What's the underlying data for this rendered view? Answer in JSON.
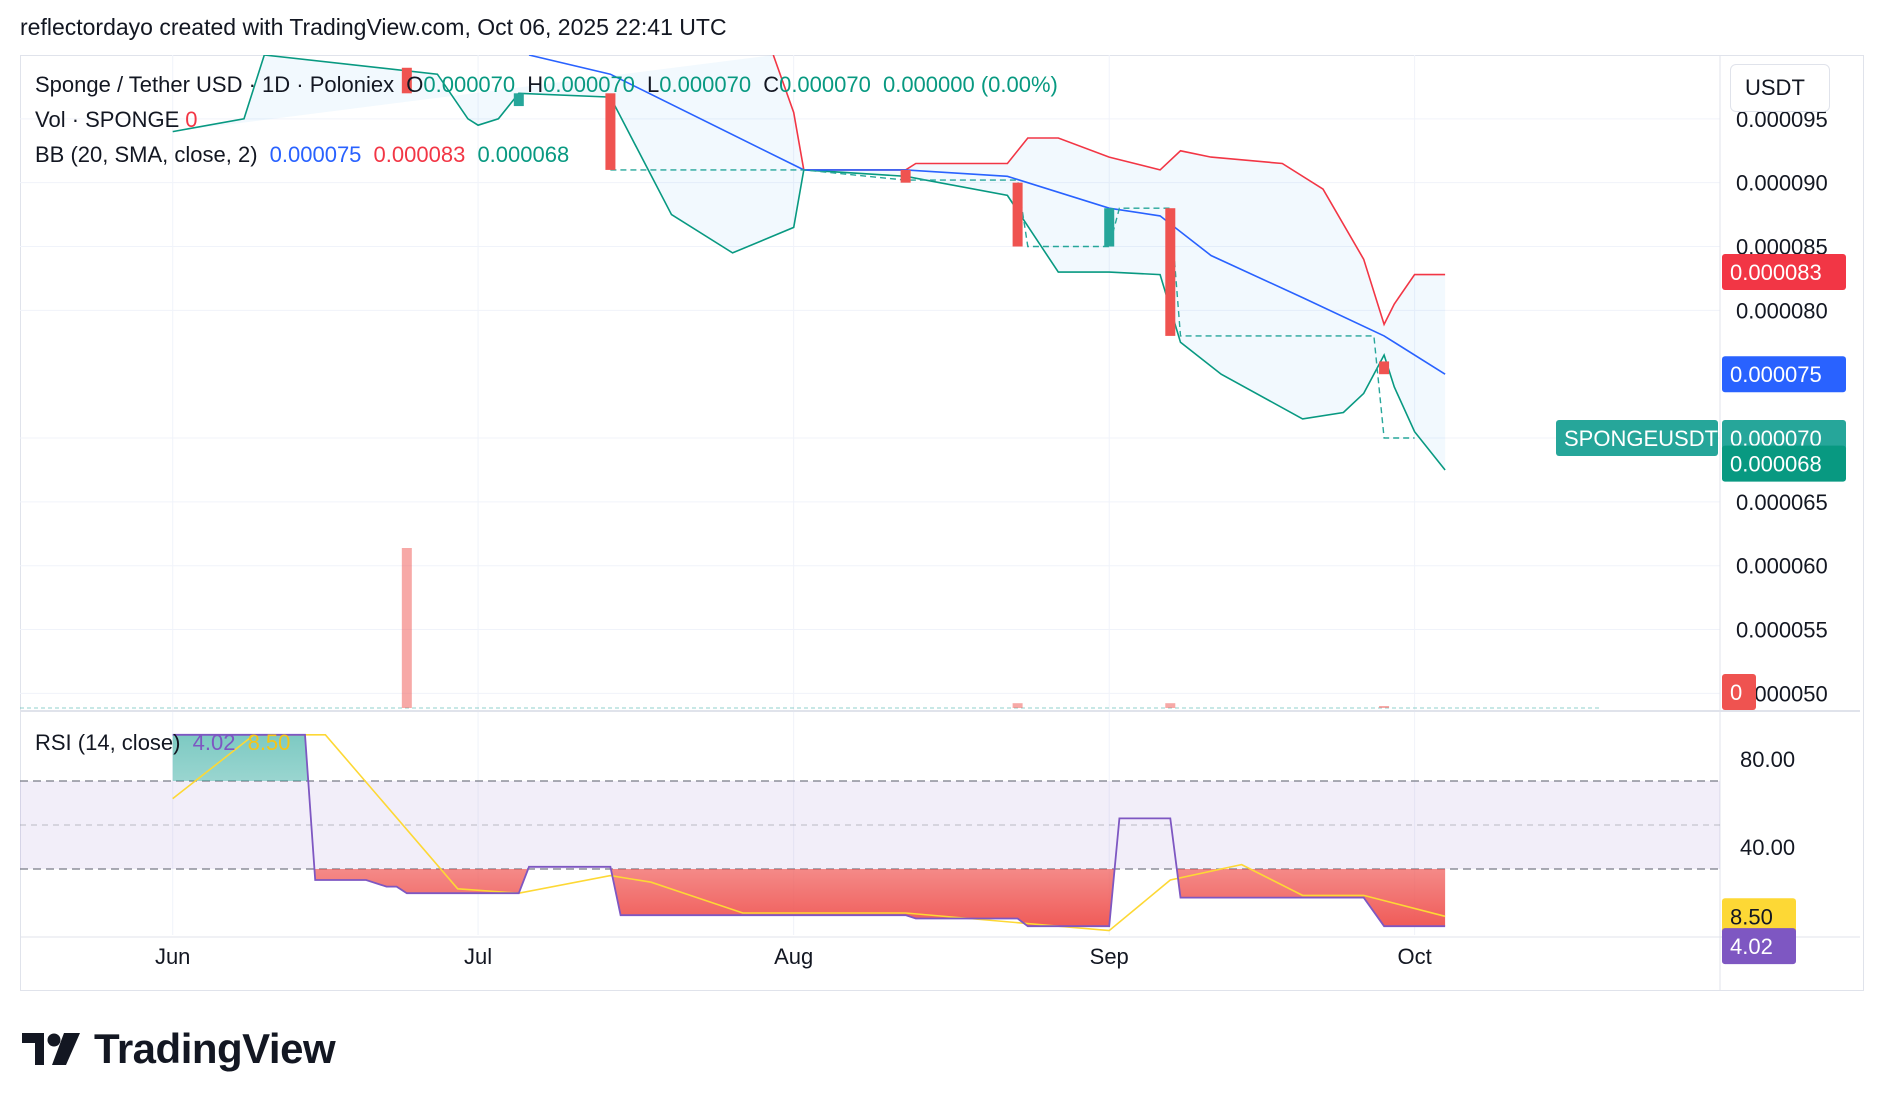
{
  "header": {
    "attribution": "reflectordayo created with TradingView.com, Oct 06, 2025 22:41 UTC"
  },
  "legend": {
    "symbol": "Sponge / Tether USD · 1D · Poloniex",
    "o_label": "O",
    "o_value": "0.000070",
    "h_label": "H",
    "h_value": "0.000070",
    "l_label": "L",
    "l_value": "0.000070",
    "c_label": "C",
    "c_value": "0.000070",
    "change": "0.000000 (0.00%)",
    "vol_label": "Vol · SPONGE",
    "vol_value": "0",
    "bb_label": "BB (20, SMA, close, 2)",
    "bb_basis": "0.000075",
    "bb_upper": "0.000083",
    "bb_lower": "0.000068",
    "rsi_label": "RSI (14, close)",
    "rsi_value": "4.02",
    "rsi_ma": "8.50"
  },
  "currency_button": "USDT",
  "price_axis": {
    "ticks": [
      "0.000095",
      "0.000090",
      "0.000085",
      "0.000080",
      "0.000065",
      "0.000060",
      "0.000055",
      "0.000050"
    ],
    "tick_values": [
      9.5e-05,
      9e-05,
      8.5e-05,
      8e-05,
      6.5e-05,
      6e-05,
      5.5e-05,
      5e-05
    ],
    "labels": [
      {
        "text": "0.000083",
        "value": 8.3e-05,
        "color": "#f23645"
      },
      {
        "text": "0.000075",
        "value": 7.5e-05,
        "color": "#2962ff"
      },
      {
        "text": "0.000070",
        "value": 7e-05,
        "color": "#26a69a"
      },
      {
        "text": "0.000068",
        "value": 6.8e-05,
        "color": "#089981"
      }
    ],
    "symbol_tag": "SPONGEUSDT",
    "volume_tag": "0"
  },
  "rsi_axis": {
    "ticks": [
      "80.00",
      "40.00"
    ],
    "tick_values": [
      80,
      40
    ],
    "labels": [
      {
        "text": "8.50",
        "value": 8.5,
        "color": "#fdd835"
      },
      {
        "text": "4.02",
        "value": 4.02,
        "color": "#7e57c2"
      }
    ]
  },
  "time_axis": {
    "ticks": [
      "Jun",
      "Jul",
      "Aug",
      "Sep",
      "Oct"
    ],
    "tick_dates": [
      "2025-06-01",
      "2025-07-01",
      "2025-08-01",
      "2025-09-01",
      "2025-10-01"
    ]
  },
  "brand": "TradingView",
  "colors": {
    "up": "#26a69a",
    "down": "#ef5350",
    "basis": "#2962ff",
    "upper": "#f23645",
    "lower": "#089981",
    "rsi": "#7e57c2",
    "rsi_ma": "#fdd835"
  },
  "chart_data": {
    "type": "line",
    "title": "Sponge / Tether USD · 1D · Poloniex",
    "candles": [
      {
        "date": "2025-06-24",
        "open": 9.9e-05,
        "close": 9.7e-05
      },
      {
        "date": "2025-07-05",
        "open": 9.6e-05,
        "close": 9.7e-05
      },
      {
        "date": "2025-07-14",
        "open": 9.7e-05,
        "close": 9.1e-05
      },
      {
        "date": "2025-08-12",
        "open": 9.1e-05,
        "close": 9e-05
      },
      {
        "date": "2025-08-23",
        "open": 9e-05,
        "close": 8.5e-05
      },
      {
        "date": "2025-09-01",
        "open": 8.5e-05,
        "close": 8.8e-05
      },
      {
        "date": "2025-09-07",
        "open": 8.8e-05,
        "close": 7.8e-05
      },
      {
        "date": "2025-09-28",
        "open": 7.6e-05,
        "close": 7.5e-05
      }
    ],
    "bb_basis": {
      "dates": [
        "2025-07-06",
        "2025-07-14",
        "2025-08-02",
        "2025-08-12",
        "2025-08-22",
        "2025-09-01",
        "2025-09-06",
        "2025-09-11",
        "2025-09-20",
        "2025-09-28",
        "2025-10-04"
      ],
      "values": [
        0.0001,
        9.85e-05,
        9.1e-05,
        9.1e-05,
        9.05e-05,
        8.8e-05,
        8.74e-05,
        8.43e-05,
        8.1e-05,
        7.8e-05,
        7.5e-05
      ]
    },
    "bb_upper": {
      "dates": [
        "2025-07-30",
        "2025-08-01",
        "2025-08-02",
        "2025-08-12",
        "2025-08-13",
        "2025-08-22",
        "2025-08-24",
        "2025-08-27",
        "2025-09-01",
        "2025-09-06",
        "2025-09-08",
        "2025-09-11",
        "2025-09-18",
        "2025-09-22",
        "2025-09-26",
        "2025-09-28",
        "2025-09-29",
        "2025-10-01",
        "2025-10-04"
      ],
      "values": [
        0.0001,
        9.55e-05,
        9.1e-05,
        9.1e-05,
        9.15e-05,
        9.15e-05,
        9.35e-05,
        9.35e-05,
        9.2e-05,
        9.1e-05,
        9.25e-05,
        9.2e-05,
        9.15e-05,
        8.95e-05,
        8.4e-05,
        7.89e-05,
        8.05e-05,
        8.28e-05,
        8.28e-05
      ]
    },
    "bb_lower": {
      "dates": [
        "2025-06-01",
        "2025-06-08",
        "2025-06-10",
        "2025-06-27",
        "2025-06-30",
        "2025-07-01",
        "2025-07-03",
        "2025-07-05",
        "2025-07-14",
        "2025-07-20",
        "2025-07-26",
        "2025-08-01",
        "2025-08-02",
        "2025-08-12",
        "2025-08-22",
        "2025-08-27",
        "2025-09-01",
        "2025-09-06",
        "2025-09-08",
        "2025-09-12",
        "2025-09-20",
        "2025-09-24",
        "2025-09-26",
        "2025-09-28",
        "2025-09-29",
        "2025-10-01",
        "2025-10-04"
      ],
      "values": [
        9.4e-05,
        9.5e-05,
        0.0001,
        9.85e-05,
        9.5e-05,
        9.45e-05,
        9.5e-05,
        9.7e-05,
        9.67e-05,
        8.75e-05,
        8.45e-05,
        8.65e-05,
        9.1e-05,
        9.05e-05,
        8.9e-05,
        8.3e-05,
        8.3e-05,
        8.28e-05,
        7.75e-05,
        7.5e-05,
        7.15e-05,
        7.2e-05,
        7.35e-05,
        7.65e-05,
        7.4e-05,
        7.05e-05,
        6.75e-05
      ]
    },
    "close_line": {
      "dates": [
        "2025-07-14",
        "2025-08-02",
        "2025-08-12",
        "2025-08-23",
        "2025-08-24",
        "2025-09-01",
        "2025-09-02",
        "2025-09-07",
        "2025-09-08",
        "2025-09-27",
        "2025-09-28",
        "2025-10-01"
      ],
      "values": [
        9.1e-05,
        9.1e-05,
        9.02e-05,
        9.02e-05,
        8.5e-05,
        8.5e-05,
        8.8e-05,
        8.8e-05,
        7.8e-05,
        7.8e-05,
        7e-05,
        7e-05
      ]
    },
    "volume": {
      "dates": [
        "2025-06-24",
        "2025-08-23",
        "2025-09-07",
        "2025-09-28"
      ],
      "values": [
        100,
        3,
        3,
        1
      ]
    },
    "rsi": {
      "dates": [
        "2025-06-01",
        "2025-06-14",
        "2025-06-15",
        "2025-06-20",
        "2025-06-22",
        "2025-06-23",
        "2025-06-24",
        "2025-07-05",
        "2025-07-06",
        "2025-07-14",
        "2025-07-15",
        "2025-08-12",
        "2025-08-13",
        "2025-08-23",
        "2025-08-24",
        "2025-09-01",
        "2025-09-02",
        "2025-09-07",
        "2025-09-08",
        "2025-09-26",
        "2025-09-28",
        "2025-10-04"
      ],
      "values": [
        91,
        91,
        25,
        25,
        22,
        22,
        19,
        19,
        31,
        31,
        9,
        9,
        7.5,
        7.5,
        4,
        4,
        53,
        53,
        17,
        17,
        4,
        4
      ]
    },
    "rsi_ma": {
      "dates": [
        "2025-06-01",
        "2025-06-09",
        "2025-06-16",
        "2025-06-29",
        "2025-07-05",
        "2025-07-14",
        "2025-07-18",
        "2025-07-27",
        "2025-08-12",
        "2025-09-01",
        "2025-09-07",
        "2025-09-14",
        "2025-09-20",
        "2025-09-26",
        "2025-10-04"
      ],
      "values": [
        62,
        91,
        91,
        21,
        19,
        27,
        24,
        10,
        10,
        2,
        25,
        32,
        18,
        18,
        8.5
      ]
    },
    "rsi_bands": {
      "upper": 70,
      "middle": 50,
      "lower": 30
    },
    "xlim": [
      "2025-05-17",
      "2025-10-31"
    ],
    "ylim": [
      4.87e-05,
      0.0001
    ]
  }
}
